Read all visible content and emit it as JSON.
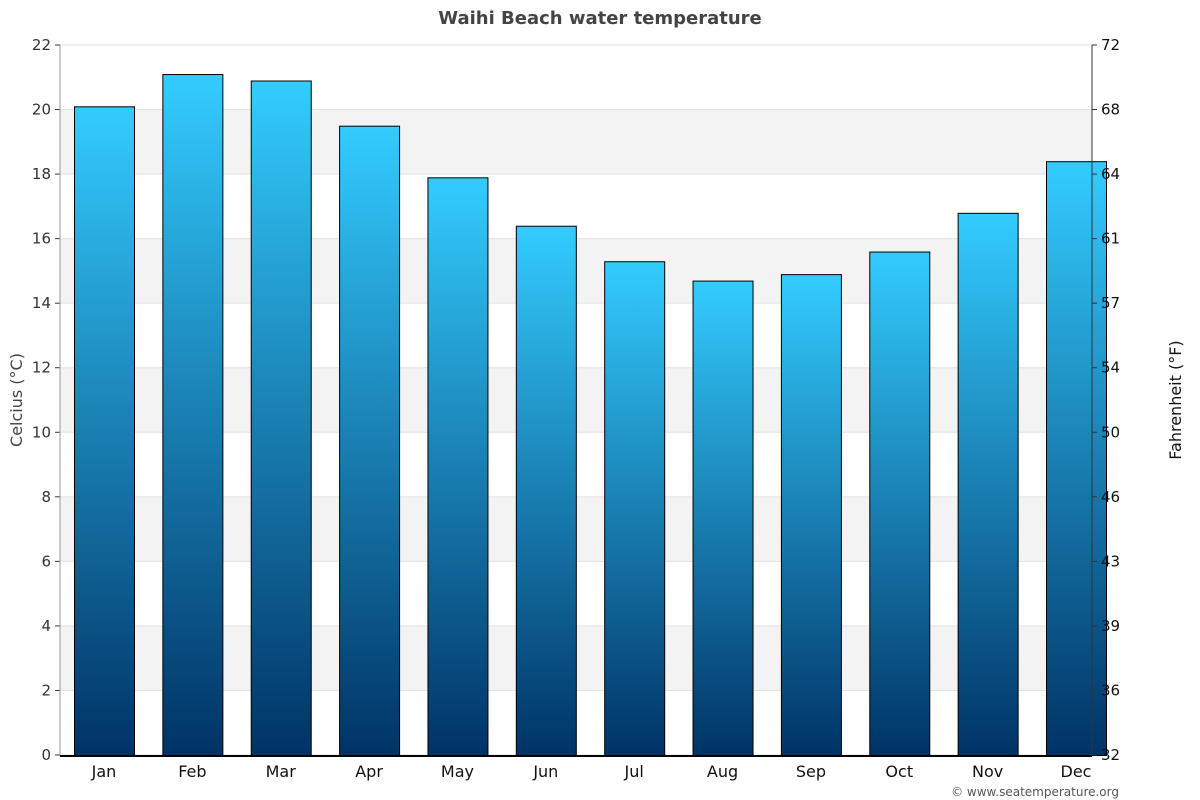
{
  "chart_data": {
    "type": "bar",
    "title": "Waihi Beach water temperature",
    "categories": [
      "Jan",
      "Feb",
      "Mar",
      "Apr",
      "May",
      "Jun",
      "Jul",
      "Aug",
      "Sep",
      "Oct",
      "Nov",
      "Dec"
    ],
    "values": [
      20.1,
      21.1,
      20.9,
      19.5,
      17.9,
      16.4,
      15.3,
      14.7,
      14.9,
      15.6,
      16.8,
      18.4
    ],
    "ylabel": "Celcius (°C)",
    "ylabel_right": "Fahrenheit (°F)",
    "ylim": [
      0,
      22
    ],
    "yticks": [
      0,
      2,
      4,
      6,
      8,
      10,
      12,
      14,
      16,
      18,
      20,
      22
    ],
    "yticks_right": [
      "32",
      "36",
      "39",
      "43",
      "46",
      "50",
      "54",
      "57",
      "61",
      "64",
      "68",
      "72"
    ],
    "grid": true,
    "bar_gradient": {
      "top": "#33ccff",
      "bottom": "#003366"
    },
    "band_color": "#f3f3f3"
  },
  "credit": "© www.seatemperature.org"
}
